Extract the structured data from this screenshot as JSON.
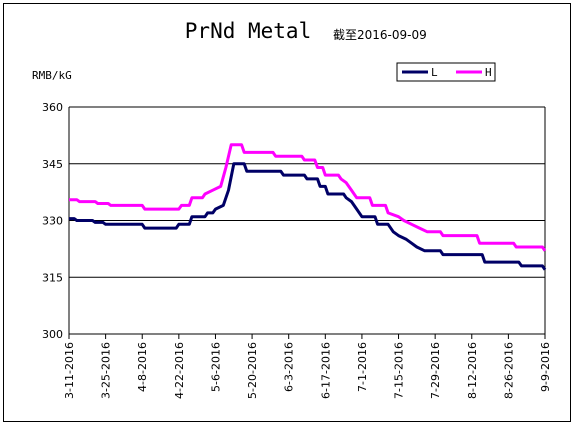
{
  "chart_data": {
    "type": "line",
    "title": "PrNd Metal",
    "subtitle": "截至2016-09-09",
    "ylabel": "RMB/kG",
    "ylim": [
      300,
      360
    ],
    "yticks": [
      "300",
      "315",
      "330",
      "345",
      "360"
    ],
    "grid": true,
    "legend_position": "top-right",
    "x_start": "2016-03-11",
    "x_end": "2016-09-09",
    "xtick_labels": [
      "3-11-2016",
      "3-25-2016",
      "4-8-2016",
      "4-22-2016",
      "5-6-2016",
      "5-20-2016",
      "6-3-2016",
      "6-17-2016",
      "7-1-2016",
      "7-15-2016",
      "7-29-2016",
      "8-12-2016",
      "8-26-2016",
      "9-9-2016"
    ],
    "series": [
      {
        "name": "L",
        "color": "#000066",
        "points": [
          [
            "2016-03-11",
            330.5
          ],
          [
            "2016-03-13",
            330.5
          ],
          [
            "2016-03-14",
            330
          ],
          [
            "2016-03-20",
            330
          ],
          [
            "2016-03-21",
            329.5
          ],
          [
            "2016-03-24",
            329.5
          ],
          [
            "2016-03-25",
            329
          ],
          [
            "2016-04-08",
            329
          ],
          [
            "2016-04-09",
            328
          ],
          [
            "2016-04-21",
            328
          ],
          [
            "2016-04-22",
            329
          ],
          [
            "2016-04-26",
            329
          ],
          [
            "2016-04-27",
            331
          ],
          [
            "2016-05-02",
            331
          ],
          [
            "2016-05-03",
            332
          ],
          [
            "2016-05-05",
            332
          ],
          [
            "2016-05-06",
            333
          ],
          [
            "2016-05-09",
            334
          ],
          [
            "2016-05-11",
            338
          ],
          [
            "2016-05-13",
            345
          ],
          [
            "2016-05-17",
            345
          ],
          [
            "2016-05-18",
            343
          ],
          [
            "2016-05-31",
            343
          ],
          [
            "2016-06-01",
            342
          ],
          [
            "2016-06-09",
            342
          ],
          [
            "2016-06-10",
            341
          ],
          [
            "2016-06-14",
            341
          ],
          [
            "2016-06-15",
            339
          ],
          [
            "2016-06-17",
            339
          ],
          [
            "2016-06-18",
            337
          ],
          [
            "2016-06-24",
            337
          ],
          [
            "2016-06-25",
            336
          ],
          [
            "2016-06-27",
            335
          ],
          [
            "2016-06-29",
            333
          ],
          [
            "2016-07-01",
            331
          ],
          [
            "2016-07-06",
            331
          ],
          [
            "2016-07-07",
            329
          ],
          [
            "2016-07-11",
            329
          ],
          [
            "2016-07-13",
            327
          ],
          [
            "2016-07-15",
            326
          ],
          [
            "2016-07-18",
            325
          ],
          [
            "2016-07-20",
            324
          ],
          [
            "2016-07-22",
            323
          ],
          [
            "2016-07-25",
            322
          ],
          [
            "2016-07-31",
            322
          ],
          [
            "2016-08-01",
            321
          ],
          [
            "2016-08-16",
            321
          ],
          [
            "2016-08-17",
            319
          ],
          [
            "2016-08-30",
            319
          ],
          [
            "2016-08-31",
            318
          ],
          [
            "2016-09-08",
            318
          ],
          [
            "2016-09-09",
            317
          ]
        ]
      },
      {
        "name": "H",
        "color": "#ff00ff",
        "points": [
          [
            "2016-03-11",
            335.5
          ],
          [
            "2016-03-14",
            335.5
          ],
          [
            "2016-03-15",
            335
          ],
          [
            "2016-03-21",
            335
          ],
          [
            "2016-03-22",
            334.5
          ],
          [
            "2016-03-26",
            334.5
          ],
          [
            "2016-03-27",
            334
          ],
          [
            "2016-04-08",
            334
          ],
          [
            "2016-04-09",
            333
          ],
          [
            "2016-04-22",
            333
          ],
          [
            "2016-04-23",
            334
          ],
          [
            "2016-04-26",
            334
          ],
          [
            "2016-04-27",
            336
          ],
          [
            "2016-05-01",
            336
          ],
          [
            "2016-05-02",
            337
          ],
          [
            "2016-05-05",
            338
          ],
          [
            "2016-05-08",
            339
          ],
          [
            "2016-05-10",
            344
          ],
          [
            "2016-05-12",
            350
          ],
          [
            "2016-05-16",
            350
          ],
          [
            "2016-05-17",
            348
          ],
          [
            "2016-05-28",
            348
          ],
          [
            "2016-05-29",
            347
          ],
          [
            "2016-06-08",
            347
          ],
          [
            "2016-06-09",
            346
          ],
          [
            "2016-06-13",
            346
          ],
          [
            "2016-06-14",
            344
          ],
          [
            "2016-06-16",
            344
          ],
          [
            "2016-06-17",
            342
          ],
          [
            "2016-06-22",
            342
          ],
          [
            "2016-06-23",
            341
          ],
          [
            "2016-06-25",
            340
          ],
          [
            "2016-06-27",
            338
          ],
          [
            "2016-06-29",
            336
          ],
          [
            "2016-07-04",
            336
          ],
          [
            "2016-07-05",
            334
          ],
          [
            "2016-07-10",
            334
          ],
          [
            "2016-07-11",
            332
          ],
          [
            "2016-07-15",
            331
          ],
          [
            "2016-07-17",
            330
          ],
          [
            "2016-07-20",
            329
          ],
          [
            "2016-07-23",
            328
          ],
          [
            "2016-07-26",
            327
          ],
          [
            "2016-07-31",
            327
          ],
          [
            "2016-08-01",
            326
          ],
          [
            "2016-08-14",
            326
          ],
          [
            "2016-08-15",
            324
          ],
          [
            "2016-08-28",
            324
          ],
          [
            "2016-08-29",
            323
          ],
          [
            "2016-09-08",
            323
          ],
          [
            "2016-09-09",
            322
          ]
        ]
      }
    ]
  }
}
